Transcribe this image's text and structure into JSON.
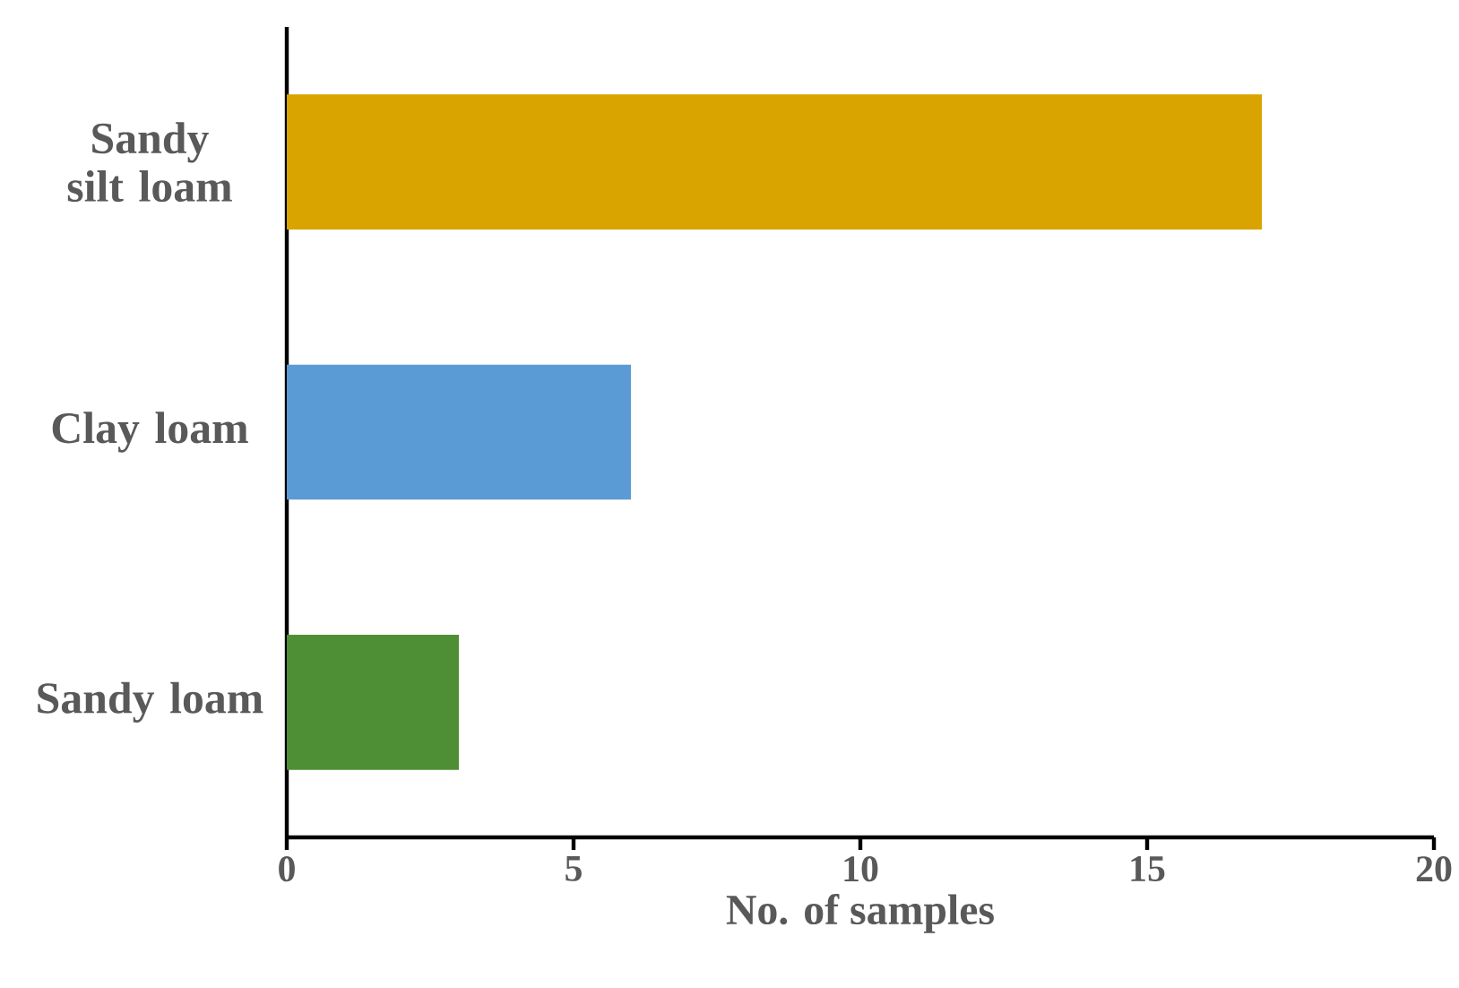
{
  "chart_data": {
    "type": "bar",
    "orientation": "horizontal",
    "categories": [
      "Sandy silt loam",
      "Clay loam",
      "Sandy loam"
    ],
    "values": [
      17,
      6,
      3
    ],
    "colors": [
      "#d9a300",
      "#5b9bd5",
      "#4e8f35"
    ],
    "xlabel": "No. of samples",
    "xlim": [
      0,
      20
    ],
    "xticks": [
      0,
      5,
      10,
      15,
      20
    ]
  }
}
